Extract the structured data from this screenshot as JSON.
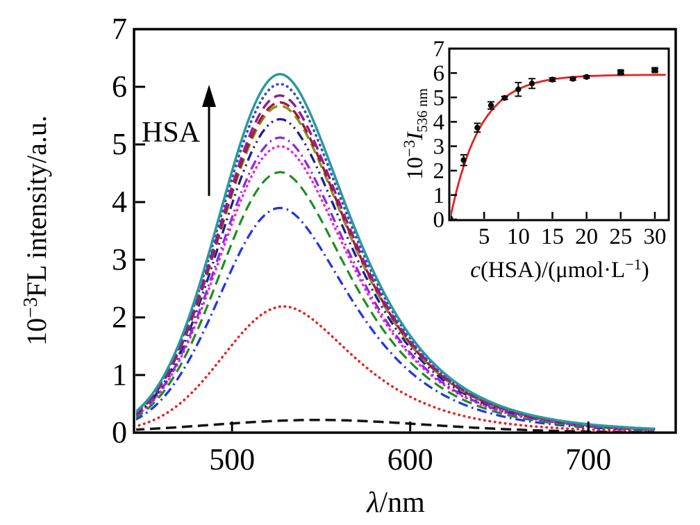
{
  "figure": {
    "background": "#ffffff",
    "main": {
      "ylabel": {
        "base": "10",
        "sup": "−3",
        "rest": "FL intensity/a.u."
      },
      "xlabel": {
        "italic": "λ",
        "rest": "/nm"
      },
      "annotation": "HSA"
    },
    "inset": {
      "ylabel": {
        "base": "10",
        "sup": "−3",
        "italic": "I",
        "sub": "536 nm"
      },
      "xlabel": {
        "italic": "c",
        "mid": "(HSA)/(μmol·L",
        "sup": "−1",
        "end": ")"
      }
    }
  },
  "chart_data": [
    {
      "id": "emission-spectra",
      "type": "line",
      "title": "Fluorescence emission spectra, intensity increasing with HSA (arrow labeled HSA)",
      "xlabel": "λ/nm",
      "ylabel": "10⁻³FL intensity/a.u.",
      "xlim": [
        445,
        749
      ],
      "ylim": [
        0,
        7
      ],
      "x_ticks": [
        500,
        600,
        700
      ],
      "y_ticks": [
        0,
        1,
        2,
        3,
        4,
        5,
        6,
        7
      ],
      "grid": false,
      "legend": "none",
      "peak_wavelength_nm": 527,
      "series_order": "bottom-to-top",
      "series": [
        {
          "name": "curve-01",
          "peak_value": 0.22,
          "center_nm": 548,
          "sigma_left": 60,
          "tail_base": 60,
          "tail_slope": 0.05,
          "color": "#141414",
          "dash": "dash",
          "width": 3.5
        },
        {
          "name": "curve-02",
          "peak_value": 2.19,
          "center_nm": 529,
          "sigma_left": 34,
          "tail_base": 32,
          "tail_slope": 0.18,
          "color": "#e82020",
          "dash": "dot",
          "width": 3.6
        },
        {
          "name": "curve-03",
          "peak_value": 3.9,
          "center_nm": 527,
          "sigma_left": 34,
          "tail_base": 32,
          "tail_slope": 0.18,
          "color": "#2336e6",
          "dash": "dashdot",
          "width": 3.3
        },
        {
          "name": "curve-04",
          "peak_value": 4.52,
          "center_nm": 527,
          "sigma_left": 34,
          "tail_base": 32,
          "tail_slope": 0.18,
          "color": "#1f8c1f",
          "dash": "dash",
          "width": 3.2
        },
        {
          "name": "curve-05",
          "peak_value": 4.97,
          "center_nm": 527,
          "sigma_left": 34,
          "tail_base": 32,
          "tail_slope": 0.18,
          "color": "#f024c8",
          "dash": "dot",
          "width": 3.6
        },
        {
          "name": "curve-06",
          "peak_value": 5.12,
          "center_nm": 527,
          "sigma_left": 34,
          "tail_base": 32,
          "tail_slope": 0.18,
          "color": "#8a2be2",
          "dash": "dashdot",
          "width": 3.3
        },
        {
          "name": "curve-07",
          "peak_value": 5.44,
          "center_nm": 527,
          "sigma_left": 34,
          "tail_base": 32,
          "tail_slope": 0.18,
          "color": "#1c1c9c",
          "dash": "dashdotdot",
          "width": 3.3
        },
        {
          "name": "curve-08",
          "peak_value": 5.67,
          "center_nm": 527,
          "sigma_left": 34,
          "tail_base": 32,
          "tail_slope": 0.18,
          "color": "#8f8f1e",
          "dash": "dash",
          "width": 3.5
        },
        {
          "name": "curve-09",
          "peak_value": 5.73,
          "center_nm": 527,
          "sigma_left": 34,
          "tail_base": 32,
          "tail_slope": 0.18,
          "color": "#9e1f2e",
          "dash": "dash",
          "width": 3.5
        },
        {
          "name": "curve-10",
          "peak_value": 5.85,
          "center_nm": 527,
          "sigma_left": 34,
          "tail_base": 32,
          "tail_slope": 0.18,
          "color": "#8e1f8e",
          "dash": "dash",
          "width": 3.5
        },
        {
          "name": "curve-11",
          "peak_value": 6.05,
          "center_nm": 527,
          "sigma_left": 34,
          "tail_base": 32,
          "tail_slope": 0.18,
          "color": "#3850c0",
          "dash": "dot",
          "width": 3.8
        },
        {
          "name": "curve-12",
          "peak_value": 6.22,
          "center_nm": 527,
          "sigma_left": 34,
          "tail_base": 32,
          "tail_slope": 0.18,
          "color": "#2a9a9a",
          "dash": "solid",
          "width": 3.5
        }
      ]
    },
    {
      "id": "binding-inset",
      "type": "scatter",
      "title": "Saturation binding curve of I(536 nm) vs HSA concentration with red fit line",
      "xlabel": "c(HSA)/(μmol·L⁻¹)",
      "ylabel": "10⁻³I 536 nm",
      "xlim": [
        0,
        32
      ],
      "ylim": [
        0,
        7
      ],
      "x_ticks": [
        5,
        10,
        15,
        20,
        25,
        30
      ],
      "y_ticks": [
        0,
        1,
        2,
        3,
        4,
        5,
        6,
        7
      ],
      "grid": false,
      "marker_color": "#0a0a0a",
      "points": [
        {
          "x": 0,
          "y": 0.05,
          "err": 0.03,
          "marker": "circle"
        },
        {
          "x": 2,
          "y": 2.43,
          "err": 0.22,
          "marker": "circle"
        },
        {
          "x": 4,
          "y": 3.76,
          "err": 0.18,
          "marker": "circle"
        },
        {
          "x": 6,
          "y": 4.67,
          "err": 0.15,
          "marker": "circle"
        },
        {
          "x": 8,
          "y": 4.98,
          "err": 0.06,
          "marker": "circle"
        },
        {
          "x": 10,
          "y": 5.33,
          "err": 0.28,
          "marker": "circle"
        },
        {
          "x": 12,
          "y": 5.57,
          "err": 0.2,
          "marker": "circle"
        },
        {
          "x": 15,
          "y": 5.73,
          "err": 0.07,
          "marker": "circle"
        },
        {
          "x": 18,
          "y": 5.76,
          "err": 0.05,
          "marker": "circle"
        },
        {
          "x": 20,
          "y": 5.84,
          "err": 0.05,
          "marker": "circle"
        },
        {
          "x": 25,
          "y": 6.03,
          "err": 0.06,
          "marker": "square"
        },
        {
          "x": 30,
          "y": 6.12,
          "err": 0.06,
          "marker": "square"
        }
      ],
      "fit": {
        "color": "#e62020",
        "ymax": 5.93,
        "k": 4.35
      }
    }
  ]
}
